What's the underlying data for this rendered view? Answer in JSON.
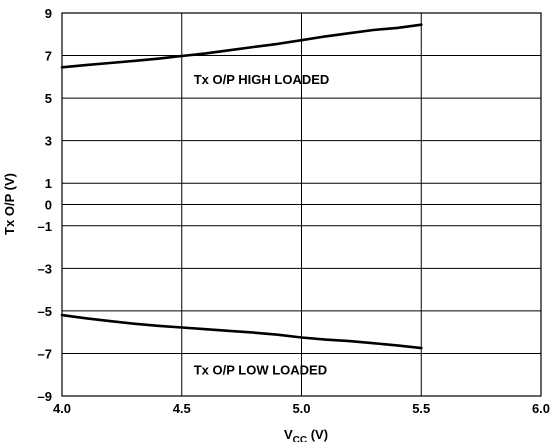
{
  "chart_data": {
    "type": "line",
    "title": "",
    "xlabel": "V",
    "xlabel_sub": "CC",
    "xlabel_unit": " (V)",
    "ylabel": "Tx O/P (V)",
    "xlim": [
      4.0,
      6.0
    ],
    "ylim": [
      -9,
      9
    ],
    "grid": true,
    "x_ticks": [
      {
        "value": 4.0,
        "label": "4.0"
      },
      {
        "value": 4.5,
        "label": "4.5"
      },
      {
        "value": 5.0,
        "label": "5.0"
      },
      {
        "value": 5.5,
        "label": "5.5"
      },
      {
        "value": 6.0,
        "label": "6.0"
      }
    ],
    "y_ticks": [
      {
        "value": 9,
        "label": "9"
      },
      {
        "value": 7,
        "label": "7"
      },
      {
        "value": 5,
        "label": "5"
      },
      {
        "value": 3,
        "label": "3"
      },
      {
        "value": 1,
        "label": "1"
      },
      {
        "value": 0,
        "label": "0"
      },
      {
        "value": -1,
        "label": "–1"
      },
      {
        "value": -3,
        "label": "–3"
      },
      {
        "value": -5,
        "label": "–5"
      },
      {
        "value": -7,
        "label": "–7"
      },
      {
        "value": -9,
        "label": "–9"
      }
    ],
    "series": [
      {
        "x": [
          4.0,
          4.1,
          4.2,
          4.3,
          4.4,
          4.5,
          4.6,
          4.7,
          4.8,
          4.9,
          5.0,
          5.1,
          5.2,
          5.3,
          5.4,
          5.5
        ],
        "y": [
          6.45,
          6.55,
          6.65,
          6.75,
          6.85,
          6.98,
          7.1,
          7.25,
          7.4,
          7.55,
          7.72,
          7.9,
          8.05,
          8.2,
          8.3,
          8.45
        ]
      },
      {
        "x": [
          4.0,
          4.1,
          4.2,
          4.3,
          4.4,
          4.5,
          4.6,
          4.7,
          4.8,
          4.9,
          5.0,
          5.1,
          5.2,
          5.3,
          5.4,
          5.5
        ],
        "y": [
          -5.2,
          -5.35,
          -5.48,
          -5.6,
          -5.7,
          -5.78,
          -5.86,
          -5.94,
          -6.02,
          -6.12,
          -6.25,
          -6.35,
          -6.42,
          -6.52,
          -6.62,
          -6.75
        ]
      }
    ],
    "annotations": [
      {
        "text": "Tx O/P HIGH LOADED",
        "x": 4.55,
        "y": 5.9
      },
      {
        "text": "Tx O/P LOW LOADED",
        "x": 4.55,
        "y": -7.75
      }
    ],
    "colors": {
      "line": "#000000",
      "grid": "#000000",
      "background": "#ffffff"
    }
  }
}
